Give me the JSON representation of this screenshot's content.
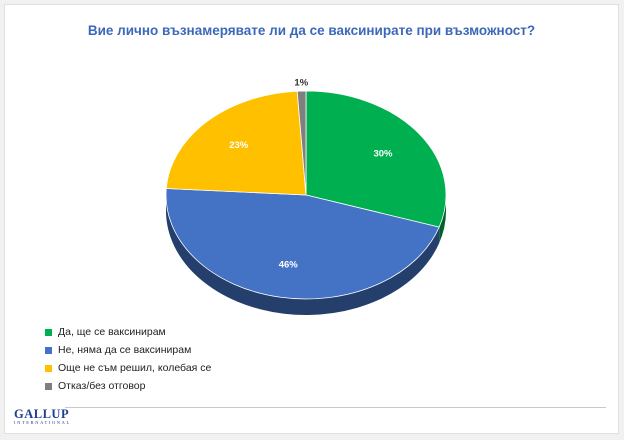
{
  "chart_data": {
    "type": "pie",
    "title": "Вие лично възнамерявате ли да се ваксинирате при възможност?",
    "slices": [
      {
        "name": "Да, ще се ваксинирам",
        "value": 30,
        "label": "30%",
        "color": "#00b050"
      },
      {
        "name": "Не, няма да се ваксинирам",
        "value": 46,
        "label": "46%",
        "color": "#4472c4"
      },
      {
        "name": "Още не съм решил, колебая се",
        "value": 23,
        "label": "23%",
        "color": "#ffc000"
      },
      {
        "name": "Отказ/без отговор",
        "value": 1,
        "label": "1%",
        "color": "#7f7f7f"
      }
    ],
    "legend_position": "bottom-left",
    "style": "3d-tilted"
  },
  "footer": {
    "logo_main": "GALLUP",
    "logo_sub": "INTERNATIONAL"
  }
}
